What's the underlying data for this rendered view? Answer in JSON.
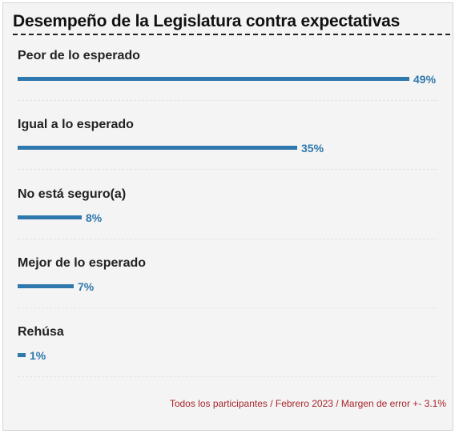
{
  "chart_data": {
    "type": "bar",
    "orientation": "horizontal",
    "title": "Desempeño de la Legislatura contra expectativas",
    "categories": [
      "Peor de lo esperado",
      "Igual a lo esperado",
      "No está seguro(a)",
      "Mejor de lo esperado",
      "Rehúsa"
    ],
    "values": [
      49,
      35,
      8,
      7,
      1
    ],
    "value_labels": [
      "49%",
      "35%",
      "8%",
      "7%",
      "1%"
    ],
    "unit": "%",
    "xlim": [
      0,
      49
    ],
    "grid": false,
    "bar_color": "#2f78ad",
    "value_label_color": "#2f78ad",
    "footnote": "Todos los participantes / Febrero 2023 / Margen de error +- 3.1%",
    "footnote_color": "#a8262b"
  }
}
